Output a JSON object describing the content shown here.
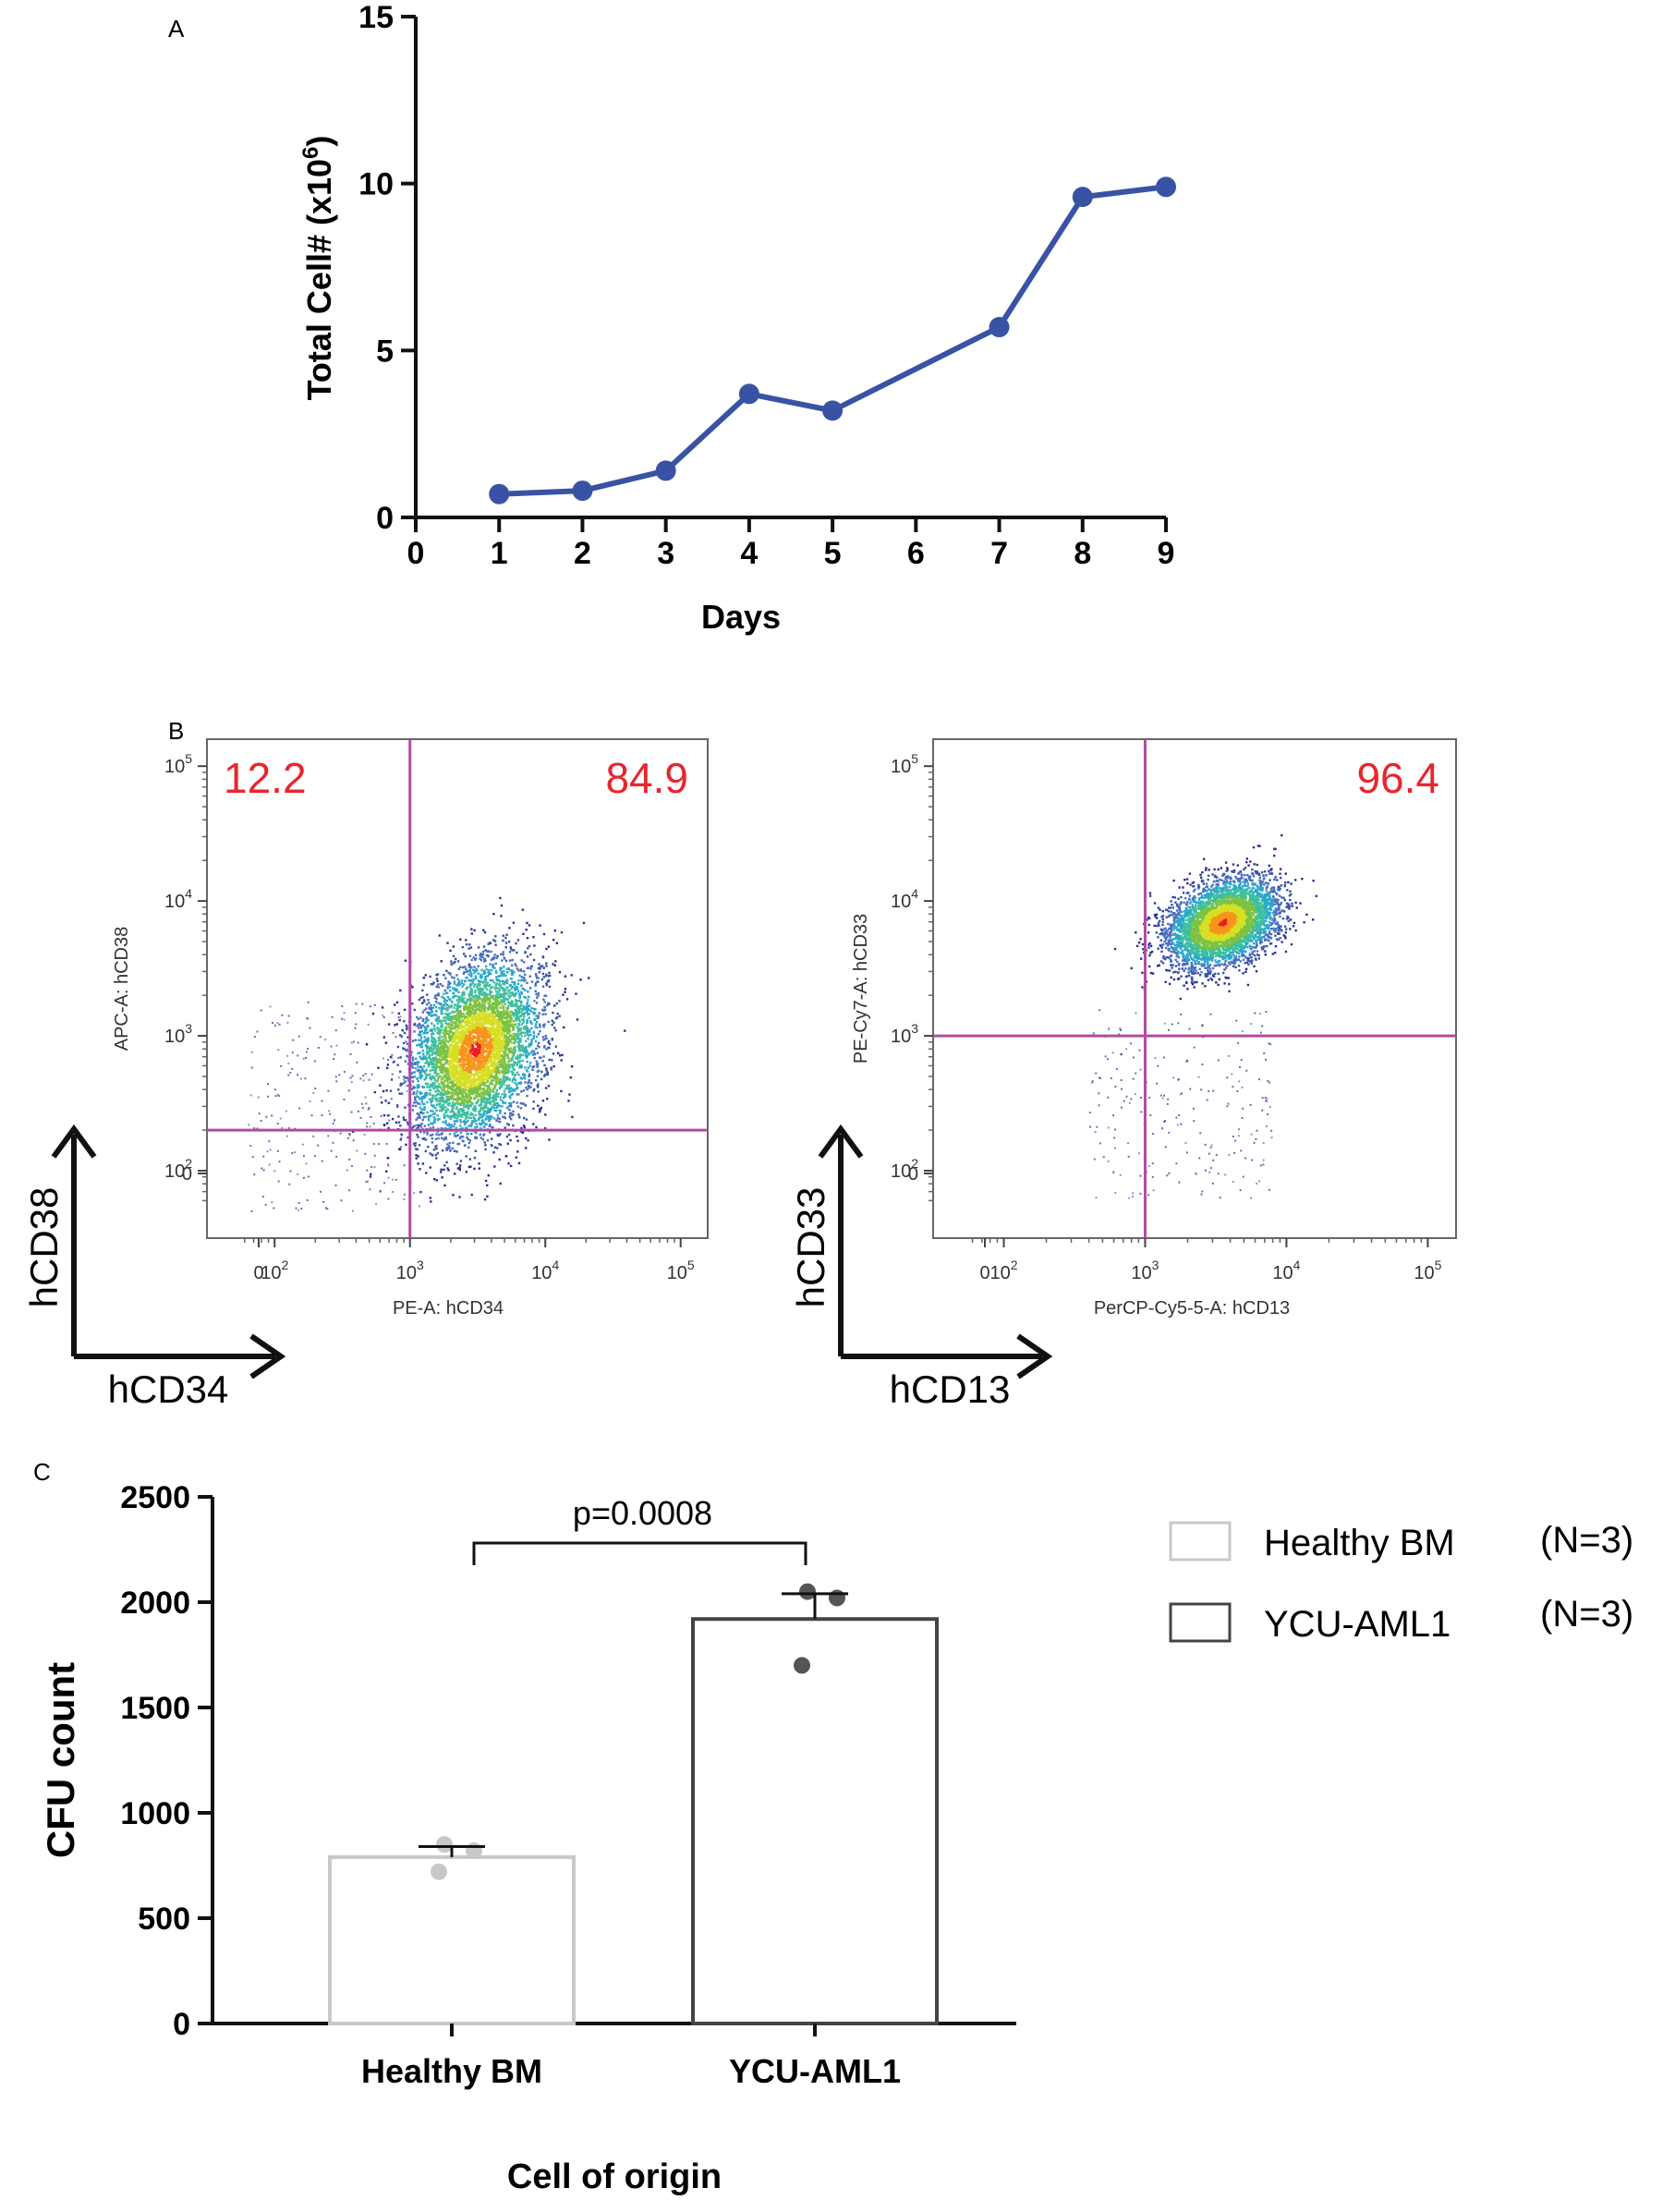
{
  "panels": {
    "A": {
      "letter": "A"
    },
    "B": {
      "letter": "B"
    },
    "C": {
      "letter": "C"
    }
  },
  "colors": {
    "line": "#3953a4",
    "gate": "#b34aa3",
    "quadrant_text": "#e8262d",
    "healthy_bar": "#c8c8c8",
    "aml_bar": "#444444",
    "healthy_dot": "#c8c8c8",
    "aml_dot": "#555555",
    "axis": "#111111"
  },
  "chart_data": [
    {
      "type": "line",
      "panel": "A",
      "title": "",
      "xlabel": "Days",
      "ylabel_main": "Total Cell# (x10",
      "ylabel_sup": "6",
      "ylabel_end": ")",
      "x": [
        1,
        2,
        3,
        4,
        5,
        7,
        8,
        9
      ],
      "values": [
        0.7,
        0.8,
        1.4,
        3.7,
        3.2,
        5.7,
        9.6,
        9.9
      ],
      "xlim": [
        0,
        9
      ],
      "ylim": [
        0,
        15
      ],
      "xticks": [
        "0",
        "1",
        "2",
        "3",
        "4",
        "5",
        "6",
        "7",
        "8",
        "9"
      ],
      "yticks": [
        "0",
        "5",
        "10",
        "15"
      ],
      "color": "#3953a4"
    },
    {
      "type": "scatter",
      "panel": "B-left",
      "xlabel": "PE-A: hCD34",
      "ylabel": "APC-A: hCD38",
      "arrow_x_label": "hCD34",
      "arrow_y_label": "hCD38",
      "quadrant_upper_left": "12.2",
      "quadrant_upper_right": "84.9",
      "gate_x": 1000,
      "gate_y": 200,
      "xticks": [
        "0",
        "10",
        "10",
        "10",
        "10"
      ],
      "xtick_exps": [
        "",
        "2",
        "3",
        "4",
        "5"
      ],
      "yticks": [
        "0",
        "10",
        "10",
        "10",
        "10"
      ],
      "ytick_exps": [
        "",
        "2",
        "3",
        "4",
        "5"
      ],
      "population_center": [
        3000,
        800
      ]
    },
    {
      "type": "scatter",
      "panel": "B-right",
      "xlabel": "PerCP-Cy5-5-A: hCD13",
      "ylabel": "PE-Cy7-A: hCD33",
      "arrow_x_label": "hCD13",
      "arrow_y_label": "hCD33",
      "quadrant_upper_right": "96.4",
      "gate_x": 1000,
      "gate_y": 1000,
      "xticks": [
        "0",
        "10",
        "10",
        "10",
        "10"
      ],
      "xtick_exps": [
        "",
        "2",
        "3",
        "4",
        "5"
      ],
      "yticks": [
        "0",
        "10",
        "10",
        "10",
        "10"
      ],
      "ytick_exps": [
        "",
        "2",
        "3",
        "4",
        "5"
      ],
      "population_center": [
        3500,
        7000
      ]
    },
    {
      "type": "bar",
      "panel": "C",
      "xlabel": "Cell of origin",
      "ylabel": "CFU count",
      "categories": [
        "Healthy BM",
        "YCU-AML1"
      ],
      "values": [
        790,
        1920
      ],
      "error": [
        50,
        120
      ],
      "points": [
        [
          850,
          820,
          720
        ],
        [
          2050,
          2020,
          1700
        ]
      ],
      "ylim": [
        0,
        2500
      ],
      "yticks": [
        "0",
        "500",
        "1000",
        "1500",
        "2000",
        "2500"
      ],
      "annotation": "p=0.0008",
      "legend": [
        {
          "name": "Healthy BM",
          "n": "(N=3)"
        },
        {
          "name": "YCU-AML1",
          "n": "(N=3)"
        }
      ]
    }
  ]
}
